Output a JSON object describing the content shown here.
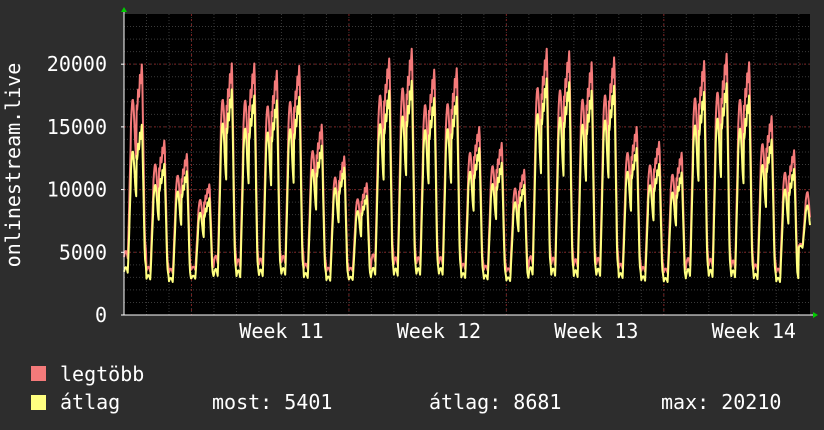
{
  "chart_data": {
    "type": "line",
    "ylabel": "onlinestream.live",
    "ylim": [
      0,
      24000
    ],
    "y_ticks": [
      "0",
      "5000",
      "10000",
      "15000",
      "20000"
    ],
    "y_tick_values": [
      0,
      5000,
      10000,
      15000,
      20000
    ],
    "x_ticks": [
      {
        "label": "Week 11",
        "day": 7
      },
      {
        "label": "Week 12",
        "day": 14
      },
      {
        "label": "Week 13",
        "day": 21
      },
      {
        "label": "Week 14",
        "day": 28
      }
    ],
    "xlim_days": [
      0,
      30.5
    ],
    "grid": true,
    "background": "#000000",
    "series": [
      {
        "name": "legtöbb",
        "color": "#f47a7a",
        "daily_peaks": [
          20400,
          14200,
          13100,
          10600,
          20500,
          20500,
          19900,
          20300,
          15500,
          12900,
          10700,
          20900,
          21700,
          20000,
          20100,
          15300,
          14000,
          11800,
          21700,
          21500,
          20600,
          21000,
          15300,
          14100,
          13200,
          20700,
          21300,
          20600,
          16200,
          13400,
          10900
        ],
        "daily_lows": [
          4300,
          3300,
          3200,
          3500,
          3900,
          3600,
          3700,
          3900,
          3500,
          3300,
          3400,
          4000,
          3700,
          3800,
          3800,
          3500,
          3400,
          3300,
          3800,
          3700,
          3600,
          3700,
          3500,
          3300,
          3200,
          3700,
          3600,
          3500,
          3400,
          3200,
          5400
        ]
      },
      {
        "name": "átlag",
        "color": "#ffff80",
        "daily_peaks": [
          15500,
          12300,
          11700,
          9500,
          18400,
          17900,
          17500,
          17800,
          13800,
          12000,
          9700,
          18300,
          19100,
          17700,
          17800,
          13600,
          12400,
          10600,
          19300,
          19000,
          18300,
          18700,
          13600,
          12300,
          11600,
          18200,
          18900,
          17900,
          14300,
          11900,
          9600
        ],
        "daily_lows": [
          3200,
          2700,
          2500,
          2800,
          2900,
          2800,
          2900,
          3000,
          2800,
          2600,
          2700,
          3000,
          2900,
          3000,
          3000,
          2800,
          2700,
          2600,
          3000,
          2900,
          2800,
          2900,
          2800,
          2600,
          2500,
          2900,
          2800,
          2800,
          2700,
          2500,
          5300
        ]
      }
    ],
    "legend_position": "bottom-left",
    "legend": [
      {
        "label": "legtöbb",
        "color": "#f47a7a"
      },
      {
        "label": "átlag",
        "color": "#ffff80"
      }
    ],
    "stats": {
      "most": "most: 5401",
      "atlag": "átlag: 8681",
      "max": "max: 20210"
    }
  }
}
